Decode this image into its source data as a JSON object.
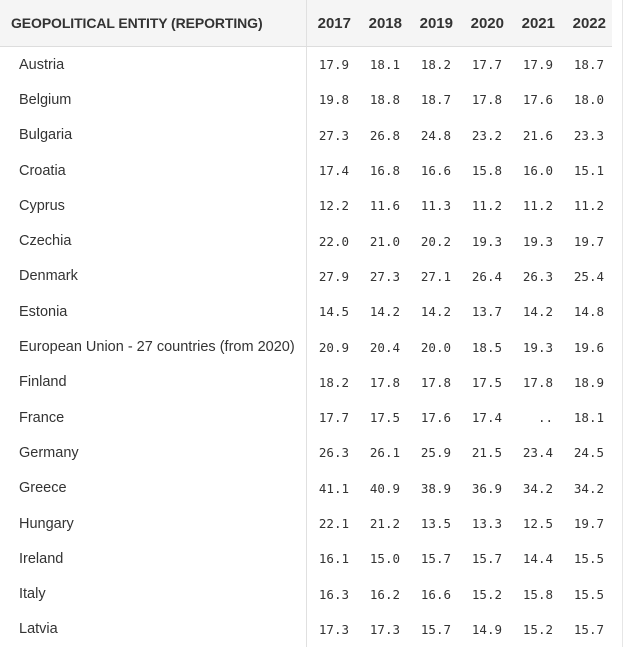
{
  "table": {
    "header": {
      "geo": "GEOPOLITICAL ENTITY (REPORTING)",
      "years": [
        "2017",
        "2018",
        "2019",
        "2020",
        "2021",
        "2022"
      ]
    },
    "rows": [
      {
        "name": "Austria",
        "values": [
          "17.9",
          "18.1",
          "18.2",
          "17.7",
          "17.9",
          "18.7"
        ]
      },
      {
        "name": "Belgium",
        "values": [
          "19.8",
          "18.8",
          "18.7",
          "17.8",
          "17.6",
          "18.0"
        ]
      },
      {
        "name": "Bulgaria",
        "values": [
          "27.3",
          "26.8",
          "24.8",
          "23.2",
          "21.6",
          "23.3"
        ]
      },
      {
        "name": "Croatia",
        "values": [
          "17.4",
          "16.8",
          "16.6",
          "15.8",
          "16.0",
          "15.1"
        ]
      },
      {
        "name": "Cyprus",
        "values": [
          "12.2",
          "11.6",
          "11.3",
          "11.2",
          "11.2",
          "11.2"
        ]
      },
      {
        "name": "Czechia",
        "values": [
          "22.0",
          "21.0",
          "20.2",
          "19.3",
          "19.3",
          "19.7"
        ]
      },
      {
        "name": "Denmark",
        "values": [
          "27.9",
          "27.3",
          "27.1",
          "26.4",
          "26.3",
          "25.4"
        ]
      },
      {
        "name": "Estonia",
        "values": [
          "14.5",
          "14.2",
          "14.2",
          "13.7",
          "14.2",
          "14.8"
        ]
      },
      {
        "name": "European Union - 27 countries (from 2020)",
        "values": [
          "20.9",
          "20.4",
          "20.0",
          "18.5",
          "19.3",
          "19.6"
        ]
      },
      {
        "name": "Finland",
        "values": [
          "18.2",
          "17.8",
          "17.8",
          "17.5",
          "17.8",
          "18.9"
        ]
      },
      {
        "name": "France",
        "values": [
          "17.7",
          "17.5",
          "17.6",
          "17.4",
          "..",
          "18.1"
        ]
      },
      {
        "name": "Germany",
        "values": [
          "26.3",
          "26.1",
          "25.9",
          "21.5",
          "23.4",
          "24.5"
        ]
      },
      {
        "name": "Greece",
        "values": [
          "41.1",
          "40.9",
          "38.9",
          "36.9",
          "34.2",
          "34.2"
        ]
      },
      {
        "name": "Hungary",
        "values": [
          "22.1",
          "21.2",
          "13.5",
          "13.3",
          "12.5",
          "19.7"
        ]
      },
      {
        "name": "Ireland",
        "values": [
          "16.1",
          "15.0",
          "15.7",
          "15.7",
          "14.4",
          "15.5"
        ]
      },
      {
        "name": "Italy",
        "values": [
          "16.3",
          "16.2",
          "16.6",
          "15.2",
          "15.8",
          "15.5"
        ]
      },
      {
        "name": "Latvia",
        "values": [
          "17.3",
          "17.3",
          "15.7",
          "14.9",
          "15.2",
          "15.7"
        ]
      }
    ]
  }
}
